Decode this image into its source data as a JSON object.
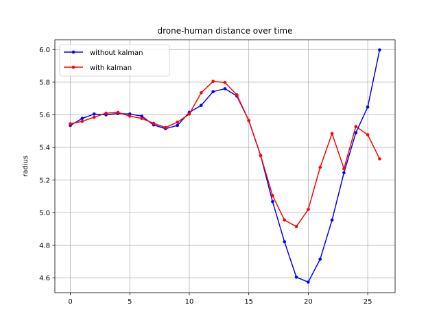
{
  "chart_data": {
    "type": "line",
    "title": "drone-human distance over time",
    "xlabel": "",
    "ylabel": "radius",
    "xlim": [
      -1.3,
      27.3
    ],
    "ylim": [
      4.51,
      6.06
    ],
    "xticks": [
      0,
      5,
      10,
      15,
      20,
      25
    ],
    "yticks": [
      4.6,
      4.8,
      5.0,
      5.2,
      5.4,
      5.6,
      5.8,
      6.0
    ],
    "ytick_labels": [
      "4.6",
      "4.8",
      "5.0",
      "5.2",
      "5.4",
      "5.6",
      "5.8",
      "6.0"
    ],
    "grid": true,
    "legend_position": "top-left",
    "x": [
      0,
      1,
      2,
      3,
      4,
      5,
      6,
      7,
      8,
      9,
      10,
      11,
      12,
      13,
      14,
      15,
      16,
      17,
      18,
      19,
      20,
      21,
      22,
      23,
      24,
      25,
      26
    ],
    "series": [
      {
        "name": "without kalman",
        "color": "#0000ff",
        "values": [
          5.535,
          5.578,
          5.605,
          5.6,
          5.608,
          5.605,
          5.592,
          5.538,
          5.515,
          5.535,
          5.615,
          5.658,
          5.742,
          5.76,
          5.715,
          5.565,
          5.35,
          5.068,
          4.822,
          4.605,
          4.575,
          4.715,
          4.955,
          5.245,
          5.49,
          5.648,
          5.998
        ]
      },
      {
        "name": "with kalman",
        "color": "#ff0000",
        "values": [
          5.545,
          5.56,
          5.585,
          5.61,
          5.615,
          5.592,
          5.578,
          5.548,
          5.522,
          5.555,
          5.605,
          5.735,
          5.805,
          5.798,
          5.722,
          5.565,
          5.35,
          5.105,
          4.955,
          4.915,
          5.02,
          5.278,
          5.485,
          5.27,
          5.528,
          5.478,
          5.33
        ]
      }
    ]
  }
}
